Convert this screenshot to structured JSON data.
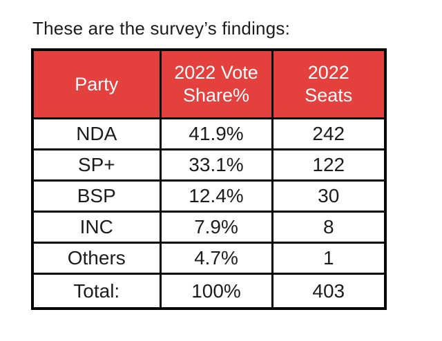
{
  "page": {
    "title": "These are the survey’s findings:"
  },
  "colors": {
    "background": "#FFFFFF",
    "header_bg": "#E4403E",
    "header_text": "#FFFFFF",
    "border": "#000000",
    "body_text": "#1C1C1C"
  },
  "table": {
    "headers": [
      "Party",
      "2022 Vote\nShare%",
      "2022\nSeats"
    ],
    "rows": [
      [
        "NDA",
        "41.9%",
        "242"
      ],
      [
        "SP+",
        "33.1%",
        "122"
      ],
      [
        "BSP",
        "12.4%",
        "30"
      ],
      [
        "INC",
        "7.9%",
        "8"
      ],
      [
        "Others",
        "4.7%",
        "1"
      ],
      [
        "Total:",
        "100%",
        "403"
      ]
    ]
  },
  "chart_data": {
    "type": "table",
    "title": "These are the survey’s findings:",
    "columns": [
      "Party",
      "2022 Vote Share%",
      "2022 Seats"
    ],
    "rows": [
      [
        "NDA",
        "41.9%",
        "242"
      ],
      [
        "SP+",
        "33.1%",
        "122"
      ],
      [
        "BSP",
        "12.4%",
        "30"
      ],
      [
        "INC",
        "7.9%",
        "8"
      ],
      [
        "Others",
        "4.7%",
        "1"
      ],
      [
        "Total:",
        "100%",
        "403"
      ]
    ],
    "parties": [
      "NDA",
      "SP+",
      "BSP",
      "INC",
      "Others"
    ],
    "vote_share_percent": [
      41.9,
      33.1,
      12.4,
      7.9,
      4.7
    ],
    "seats": [
      242,
      122,
      30,
      8,
      1
    ],
    "total_vote_share_percent": 100,
    "total_seats": 403,
    "layout": "header row red with white text, body rows white with black text, black grid borders"
  }
}
